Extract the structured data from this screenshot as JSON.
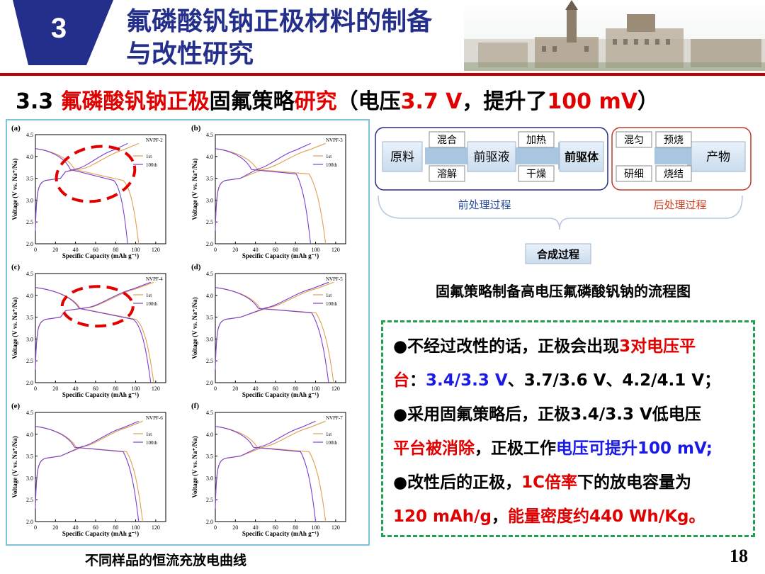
{
  "header": {
    "section_number": "3",
    "title_line1": "氟磷酸钒钠正极材料的制备",
    "title_line2": "与改性研究"
  },
  "subtitle": {
    "prefix": "3.3 ",
    "red1": "氟磷酸钒钠正极",
    "black1": "固氟策略",
    "red2": "研究",
    "black2": "（电压",
    "red3": "3.7 V",
    "black3": "，提升了",
    "red4": "100 mV",
    "black4": "）"
  },
  "charts": [
    {
      "panel": "(a)",
      "sample": "NVPF-2",
      "legend": [
        "1st",
        "100th"
      ],
      "highlight": true
    },
    {
      "panel": "(b)",
      "sample": "NVPF-3",
      "legend": [
        "1st",
        "100th"
      ],
      "highlight": false
    },
    {
      "panel": "(c)",
      "sample": "NVPF-4",
      "legend": [
        "1st",
        "100th"
      ],
      "highlight": true
    },
    {
      "panel": "(d)",
      "sample": "NVPF-5",
      "legend": [
        "1st",
        "100th"
      ],
      "highlight": false
    },
    {
      "panel": "(e)",
      "sample": "NVPF-6",
      "legend": [
        "1st",
        "100th"
      ],
      "highlight": false
    },
    {
      "panel": "(f)",
      "sample": "NVPF-7",
      "legend": [
        "1st",
        "100th"
      ],
      "highlight": false
    }
  ],
  "chart_axes": {
    "xlabel": "Specific Capacity (mAh g⁻¹)",
    "ylabel": "Voltage (V vs. Na⁺/Na)",
    "x_ticks": [
      "0",
      "20",
      "40",
      "60",
      "80",
      "100",
      "120"
    ],
    "y_ticks": [
      "2.0",
      "2.5",
      "3.0",
      "3.5",
      "4.0",
      "4.5"
    ]
  },
  "left_caption": "不同样品的恒流充放电曲线",
  "flow": {
    "raw": "原料",
    "mix": "混合",
    "dissolve": "溶解",
    "precursor_liquid": "前驱液",
    "heat": "加热",
    "dry": "干燥",
    "precursor": "前驱体",
    "knead": "混匀",
    "grind": "研细",
    "prefire": "预烧",
    "sinter": "烧结",
    "product": "产物",
    "pre_process": "前处理过程",
    "post_process": "后处理过程",
    "synthesis": "合成过程",
    "colors": {
      "blue_border": "#2a2a8a",
      "red_border": "#c0392b",
      "box_fill": "#dbe9f5",
      "arrow": "#a8c6e0"
    }
  },
  "flow_caption": "固氟策略制备高电压氟磷酸钒钠的流程图",
  "notes": {
    "l1_a": "●不经过改性的话，正极会出现",
    "l1_b": "3对电压平",
    "l2_a": "台",
    "l2_b": "：",
    "l2_c": "3.4/3.3 V",
    "l2_d": "、3.7/3.6 V、4.2/4.1 V；",
    "l3": "●采用固氟策略后，正极3.4/3.3 V低电压",
    "l4_a": "平台被消除",
    "l4_b": "，正极工作",
    "l4_c": "电压可提升100 mV;",
    "l5_a": "●改性后的正极，",
    "l5_b": "1C倍率",
    "l5_c": "下的放电容量为",
    "l6_a": "120 mAh/g",
    "l6_b": "，",
    "l6_c": "能量密度约440 Wh/Kg。"
  },
  "page_number": "18"
}
